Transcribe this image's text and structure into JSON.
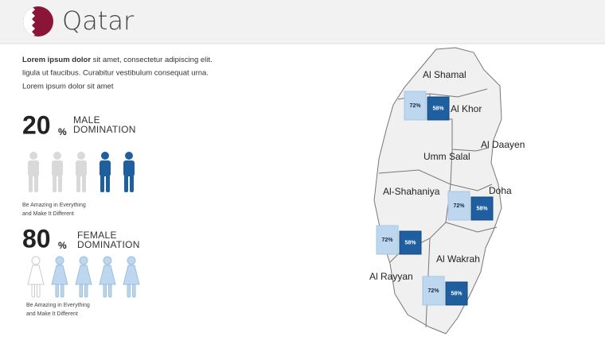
{
  "header": {
    "title": "Qatar"
  },
  "intro": {
    "bold": "Lorem ipsum dolor",
    "lines": [
      " sit amet, consectetur adipiscing elit.",
      "ligula ut faucibus.  Curabitur vestibulum consequat urna.",
      "Lorem ipsum dolor sit amet"
    ]
  },
  "stats": [
    {
      "number": "20",
      "unit": "%",
      "label_lines": [
        "MALE",
        "DOMINATION"
      ],
      "caption_lines": [
        "Be Amazing in Everything",
        "and Make It Different"
      ]
    },
    {
      "number": "80",
      "unit": "%",
      "label_lines": [
        "FEMALE",
        "DOMINATION"
      ],
      "caption_lines": [
        "Be Amazing in Everything",
        "and Make It Different"
      ]
    }
  ],
  "map": {
    "regions": [
      "Al Shamal",
      "Al Khor",
      "Al Daayen",
      "Umm  Salal",
      "Al-Shahaniya",
      "Doha",
      "Al Wakrah",
      "Al Rayyan"
    ],
    "bars": [
      {
        "values": [
          72,
          58
        ],
        "value_labels": [
          "72%",
          "58%"
        ]
      },
      {
        "values": [
          72,
          58
        ],
        "value_labels": [
          "72%",
          "58%"
        ]
      },
      {
        "values": [
          72,
          58
        ],
        "value_labels": [
          "72%",
          "58%"
        ]
      },
      {
        "values": [
          72,
          58
        ],
        "value_labels": [
          "72%",
          "58%"
        ]
      }
    ]
  }
}
